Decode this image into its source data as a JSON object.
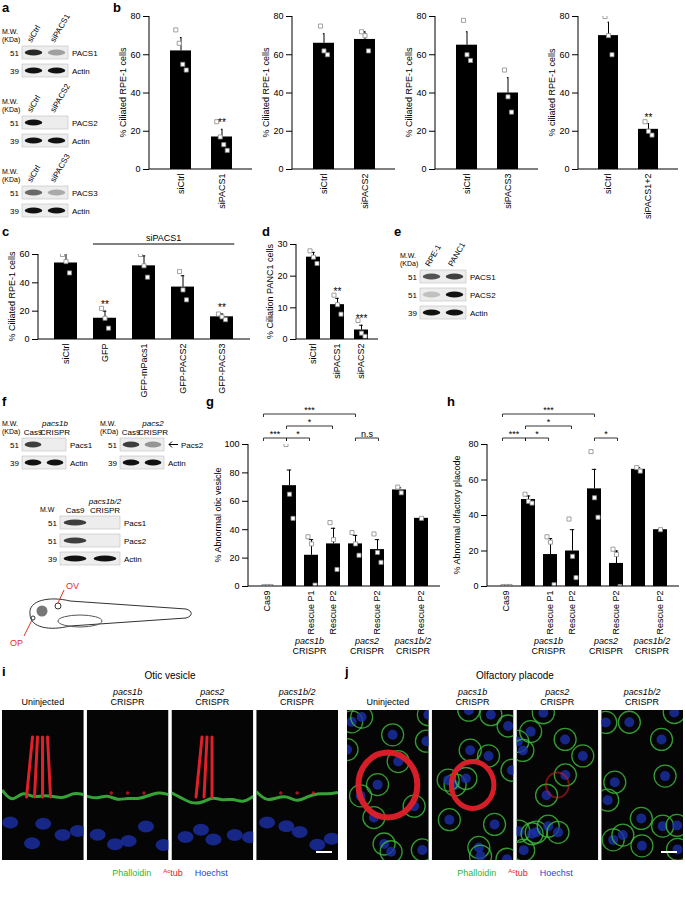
{
  "chart_data": [
    {
      "panel": "b",
      "type": "bar",
      "ylabel": "% Ciliated RPE-1 cells",
      "categories": [
        "siCtrl",
        "siPACS1"
      ],
      "values": [
        62,
        17
      ],
      "errors": [
        7,
        4
      ],
      "points": [
        [
          73,
          66,
          55,
          52
        ],
        [
          25,
          17,
          13,
          10
        ]
      ],
      "color": "#000000",
      "ylim": [
        0,
        80
      ],
      "yticks": [
        0,
        20,
        40,
        60,
        80
      ],
      "annotations": [
        {
          "index": 1,
          "text": "**"
        }
      ]
    },
    {
      "panel": "b",
      "type": "bar",
      "ylabel": "% Ciliated RPE-1 cells",
      "categories": [
        "siCtrl",
        "siPACS2"
      ],
      "values": [
        66,
        68
      ],
      "errors": [
        5,
        4
      ],
      "points": [
        [
          75,
          62,
          60
        ],
        [
          72,
          70,
          62
        ]
      ],
      "color": "#000000",
      "ylim": [
        0,
        80
      ],
      "yticks": [
        0,
        20,
        40,
        60,
        80
      ],
      "annotations": []
    },
    {
      "panel": "b",
      "type": "bar",
      "ylabel": "% Ciliated RPE-1 cells",
      "categories": [
        "siCtrl",
        "siPACS3"
      ],
      "values": [
        65,
        40
      ],
      "errors": [
        7,
        8
      ],
      "points": [
        [
          78,
          60,
          57
        ],
        [
          52,
          38,
          30
        ]
      ],
      "color": "#000000",
      "ylim": [
        0,
        80
      ],
      "yticks": [
        0,
        20,
        40,
        60,
        80
      ],
      "annotations": []
    },
    {
      "panel": "b",
      "type": "bar",
      "ylabel": "% ciliated RPE-1 cells",
      "categories": [
        "siCtrl",
        "siPACS1+2"
      ],
      "values": [
        70,
        21
      ],
      "errors": [
        7,
        3
      ],
      "points": [
        [
          80,
          70,
          60
        ],
        [
          25,
          20,
          18
        ]
      ],
      "color": "#000000",
      "ylim": [
        0,
        80
      ],
      "yticks": [
        0,
        20,
        40,
        60,
        80
      ],
      "annotations": [
        {
          "index": 1,
          "text": "**"
        }
      ]
    },
    {
      "panel": "c",
      "type": "bar",
      "ylabel": "% Ciliated RPE-1 cells",
      "categories": [
        "siCtrl",
        "GFP",
        "GFP-mPacs1",
        "GFP-PACS2",
        "GFP-PACS3"
      ],
      "values": [
        54,
        15,
        52,
        37,
        16
      ],
      "errors": [
        7,
        5,
        7,
        8,
        2
      ],
      "points": [
        [
          60,
          55,
          47
        ],
        [
          22,
          15,
          8
        ],
        [
          60,
          52,
          44
        ],
        [
          48,
          35,
          28
        ],
        [
          18,
          16,
          14
        ]
      ],
      "color": "#000000",
      "ylim": [
        0,
        60
      ],
      "yticks": [
        0,
        20,
        40,
        60
      ],
      "annotations": [
        {
          "index": 1,
          "text": "**"
        },
        {
          "index": 4,
          "text": "**"
        }
      ],
      "top_groups": [
        {
          "label": "siPACS1",
          "from": 1,
          "to": 4
        }
      ]
    },
    {
      "panel": "d",
      "type": "bar",
      "ylabel": "% Ciliation PANC1 cells",
      "categories": [
        "siCtrl",
        "siPACS1",
        "siPACS2"
      ],
      "values": [
        26,
        11,
        3
      ],
      "errors": [
        1.5,
        2,
        1.5
      ],
      "points": [
        [
          28,
          26,
          24
        ],
        [
          14,
          11,
          8
        ],
        [
          6,
          2,
          1
        ]
      ],
      "color": "#000000",
      "ylim": [
        0,
        30
      ],
      "yticks": [
        0,
        10,
        20,
        30
      ],
      "annotations": [
        {
          "index": 1,
          "text": "**"
        },
        {
          "index": 2,
          "text": "***"
        }
      ]
    },
    {
      "panel": "g",
      "type": "bar",
      "ylabel": "% Abnormal otic vesicle",
      "categories": [
        "Cas9",
        null,
        "Rescue P1",
        "Rescue P2",
        null,
        "Rescue P2",
        null,
        "Rescue P2"
      ],
      "values": [
        0,
        71,
        22,
        30,
        30,
        26,
        68,
        48
      ],
      "errors": [
        0,
        11,
        11,
        11,
        6,
        7,
        1.5,
        0
      ],
      "points": [
        [
          0,
          0,
          0
        ],
        [
          100,
          65,
          48
        ],
        [
          35,
          30,
          1
        ],
        [
          45,
          33,
          12
        ],
        [
          38,
          30,
          22
        ],
        [
          37,
          24,
          17
        ],
        [
          70,
          66
        ],
        [
          48
        ]
      ],
      "color": "#000000",
      "ylim": [
        0,
        100
      ],
      "yticks": [
        0,
        20,
        40,
        60,
        80,
        100
      ],
      "brackets": [
        {
          "from": 0,
          "to": 1,
          "text": "***"
        },
        {
          "from": 1,
          "to": 2,
          "text": "*"
        },
        {
          "from": 1,
          "to": 3,
          "text": "*"
        },
        {
          "from": 0,
          "to": 4,
          "text": "***"
        },
        {
          "from": 4,
          "to": 5,
          "text": "n.s"
        }
      ],
      "bottom_groups": [
        {
          "label": "pacs1b CRISPR",
          "from": 1,
          "to": 3
        },
        {
          "label": "pacs2 CRISPR",
          "from": 4,
          "to": 5
        },
        {
          "label": "pacs1b/2 CRISPR",
          "from": 6,
          "to": 7
        }
      ]
    },
    {
      "panel": "h",
      "type": "bar",
      "ylabel": "% Abnormal olfactory placode",
      "categories": [
        "Cas9",
        null,
        "Rescue P1",
        "Rescue P2",
        null,
        "Rescue P2",
        null,
        "Rescue P2"
      ],
      "values": [
        0,
        49,
        18,
        20,
        55,
        13,
        66,
        32
      ],
      "errors": [
        0,
        2,
        9,
        12,
        11,
        7,
        1,
        0
      ],
      "points": [
        [
          0,
          0,
          0
        ],
        [
          52,
          48,
          47
        ],
        [
          28,
          25,
          1
        ],
        [
          38,
          17,
          5
        ],
        [
          76,
          50,
          39
        ],
        [
          21,
          18,
          0
        ],
        [
          67,
          65
        ],
        [
          32
        ]
      ],
      "color": "#000000",
      "ylim": [
        0,
        80
      ],
      "yticks": [
        0,
        20,
        40,
        60,
        80
      ],
      "brackets": [
        {
          "from": 0,
          "to": 1,
          "text": "***"
        },
        {
          "from": 1,
          "to": 2,
          "text": "*"
        },
        {
          "from": 1,
          "to": 3,
          "text": "*"
        },
        {
          "from": 0,
          "to": 4,
          "text": "***"
        },
        {
          "from": 4,
          "to": 5,
          "text": "*"
        }
      ],
      "bottom_groups": [
        {
          "label": "pacs1b CRISPR",
          "from": 1,
          "to": 3
        },
        {
          "label": "pacs2 CRISPR",
          "from": 4,
          "to": 5
        },
        {
          "label": "pacs1b/2 CRISPR",
          "from": 6,
          "to": 7
        }
      ]
    }
  ],
  "blots": [
    {
      "panel": "a",
      "mw_header": "M.W. (KDa)",
      "lanes": [
        "siCtrl",
        "siPACS1"
      ],
      "rows": [
        {
          "mw": 51,
          "protein": "PACS1",
          "bands": [
            0.9,
            0.35
          ]
        },
        {
          "mw": 39,
          "protein": "Actin",
          "bands": [
            1,
            1
          ]
        }
      ]
    },
    {
      "panel": "a",
      "mw_header": "M.W. (KDa)",
      "lanes": [
        "siCtrl",
        "siPACS2"
      ],
      "rows": [
        {
          "mw": 51,
          "protein": "PACS2",
          "bands": [
            1,
            0
          ]
        },
        {
          "mw": 39,
          "protein": "Actin",
          "bands": [
            1,
            1
          ]
        }
      ]
    },
    {
      "panel": "a",
      "mw_header": "M.W. (KDa)",
      "lanes": [
        "siCtrl",
        "siPACS3"
      ],
      "rows": [
        {
          "mw": 51,
          "protein": "PACS3",
          "bands": [
            0.6,
            0.3
          ]
        },
        {
          "mw": 39,
          "protein": "Actin",
          "bands": [
            1,
            1
          ]
        }
      ]
    },
    {
      "panel": "e",
      "mw_header": "M.W. (KDa)",
      "lanes": [
        "RPE-1",
        "PANC1"
      ],
      "rows": [
        {
          "mw": 51,
          "protein": "PACS1",
          "bands": [
            0.7,
            0.8
          ]
        },
        {
          "mw": 51,
          "protein": "PACS2",
          "bands": [
            0.2,
            1
          ]
        },
        {
          "mw": 39,
          "protein": "Actin",
          "bands": [
            1,
            1
          ]
        }
      ]
    },
    {
      "panel": "f",
      "mw_header": "M.W. (KDa)",
      "lanes": [
        "Cas9",
        "pacs1b CRISPR"
      ],
      "rows": [
        {
          "mw": 51,
          "protein": "Pacs1",
          "bands": [
            0.8,
            0
          ]
        },
        {
          "mw": 39,
          "protein": "Actin",
          "bands": [
            1,
            1
          ]
        }
      ]
    },
    {
      "panel": "f",
      "mw_header": "M.W. (KDa)",
      "lanes": [
        "Cas9",
        "pacs2 CRISPR"
      ],
      "rows": [
        {
          "mw": 51,
          "protein": "Pacs2",
          "arrow": true,
          "bands": [
            0.8,
            0.4
          ]
        },
        {
          "mw": 39,
          "protein": "Actin",
          "bands": [
            1,
            1
          ]
        }
      ]
    },
    {
      "panel": "f",
      "mw_header": "M.W",
      "lanes": [
        "Cas9",
        "pacs1b/2 CRISPR"
      ],
      "rows": [
        {
          "mw": 51,
          "protein": "Pacs1",
          "bands": [
            0.8,
            0
          ]
        },
        {
          "mw": 51,
          "protein": "Pacs2",
          "bands": [
            0.8,
            0
          ]
        },
        {
          "mw": 39,
          "protein": "Actin",
          "bands": [
            1,
            1
          ]
        }
      ]
    }
  ],
  "schematic": {
    "panel": "f",
    "labels": [
      "OV",
      "OP"
    ]
  },
  "micrographs": [
    {
      "panel": "i",
      "title": "Otic vesicle",
      "columns": [
        "Uninjected",
        "pacs1b CRISPR",
        "pacs2 CRISPR",
        "pacs1b/2 CRISPR"
      ],
      "stains": [
        {
          "label": "Phalloidin",
          "color": "#2db82d"
        },
        {
          "superscript": "Ac",
          "label": "tub",
          "color": "#e8202a"
        },
        {
          "label": "Hoechst",
          "color": "#2b3fd6"
        }
      ]
    },
    {
      "panel": "j",
      "title": "Olfactory placode",
      "columns": [
        "Uninjected",
        "pacs1b CRISPR",
        "pacs2 CRISPR",
        "pacs1b/2 CRISPR"
      ],
      "stains": [
        {
          "label": "Phalloidin",
          "color": "#2db82d"
        },
        {
          "superscript": "Ac",
          "label": "tub",
          "color": "#e8202a"
        },
        {
          "label": "Hoechst",
          "color": "#2b3fd6"
        }
      ]
    }
  ]
}
